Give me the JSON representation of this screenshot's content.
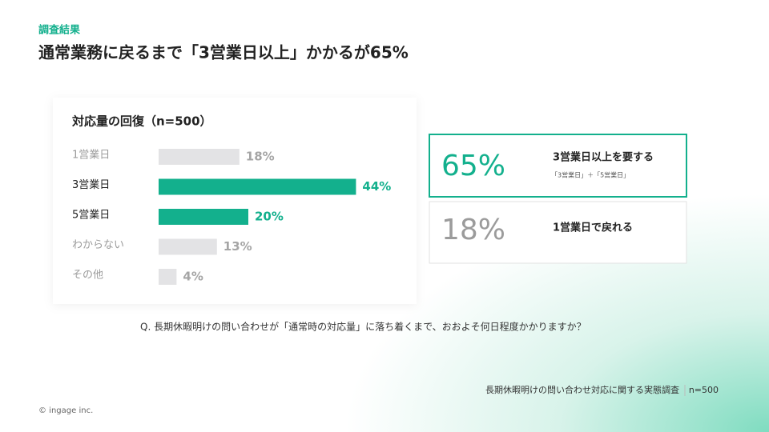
{
  "header": {
    "label": "調査結果",
    "title": "通常業務に戻るまで「3営業日以上」かかるが65%"
  },
  "chart_data": {
    "type": "bar",
    "orientation": "horizontal",
    "title": "対応量の回復（n=500）",
    "categories": [
      "1営業日",
      "3営業日",
      "5営業日",
      "わからない",
      "その他"
    ],
    "values": [
      18,
      44,
      20,
      13,
      4
    ],
    "value_labels": [
      "18%",
      "44%",
      "20%",
      "13%",
      "4%"
    ],
    "colors": [
      "#e3e3e5",
      "#13b08d",
      "#13b08d",
      "#e3e3e5",
      "#e3e3e5"
    ],
    "highlight": [
      false,
      true,
      true,
      false,
      false
    ]
  },
  "callouts": [
    {
      "value": "65%",
      "label": "3営業日以上を要する",
      "note": "「3営業日」＋「5営業日」"
    },
    {
      "value": "18%",
      "label": "1営業日で戻れる"
    }
  ],
  "question": "Q. 長期休暇明けの問い合わせが「通常時の対応量」に落ち着くまで、おおよそ何日程度かかりますか？",
  "source": "長期休暇明けの問い合わせ対応に関する実態調査",
  "sample": "n=500",
  "copyright": "© ingage inc."
}
